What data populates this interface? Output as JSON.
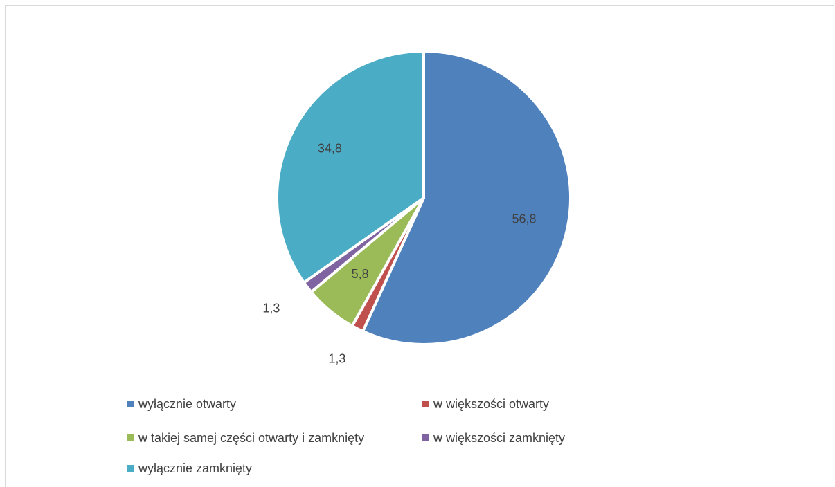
{
  "chart_data": {
    "type": "pie",
    "title": "",
    "legend_position": "bottom",
    "series": [
      {
        "slices": [
          {
            "label": "wyłącznie otwarty",
            "value": 56.8,
            "value_label": "56,8",
            "color": "#4f81bd"
          },
          {
            "label": "w większości otwarty",
            "value": 1.3,
            "value_label": "1,3",
            "color": "#c0504d"
          },
          {
            "label": "w takiej samej części otwarty i zamknięty",
            "value": 5.8,
            "value_label": "5,8",
            "color": "#9bbb59"
          },
          {
            "label": "w większości zamknięty",
            "value": 1.3,
            "value_label": "1,3",
            "color": "#8064a2"
          },
          {
            "label": "wyłącznie zamknięty",
            "value": 34.8,
            "value_label": "34,8",
            "color": "#4bacc6"
          }
        ]
      }
    ]
  }
}
